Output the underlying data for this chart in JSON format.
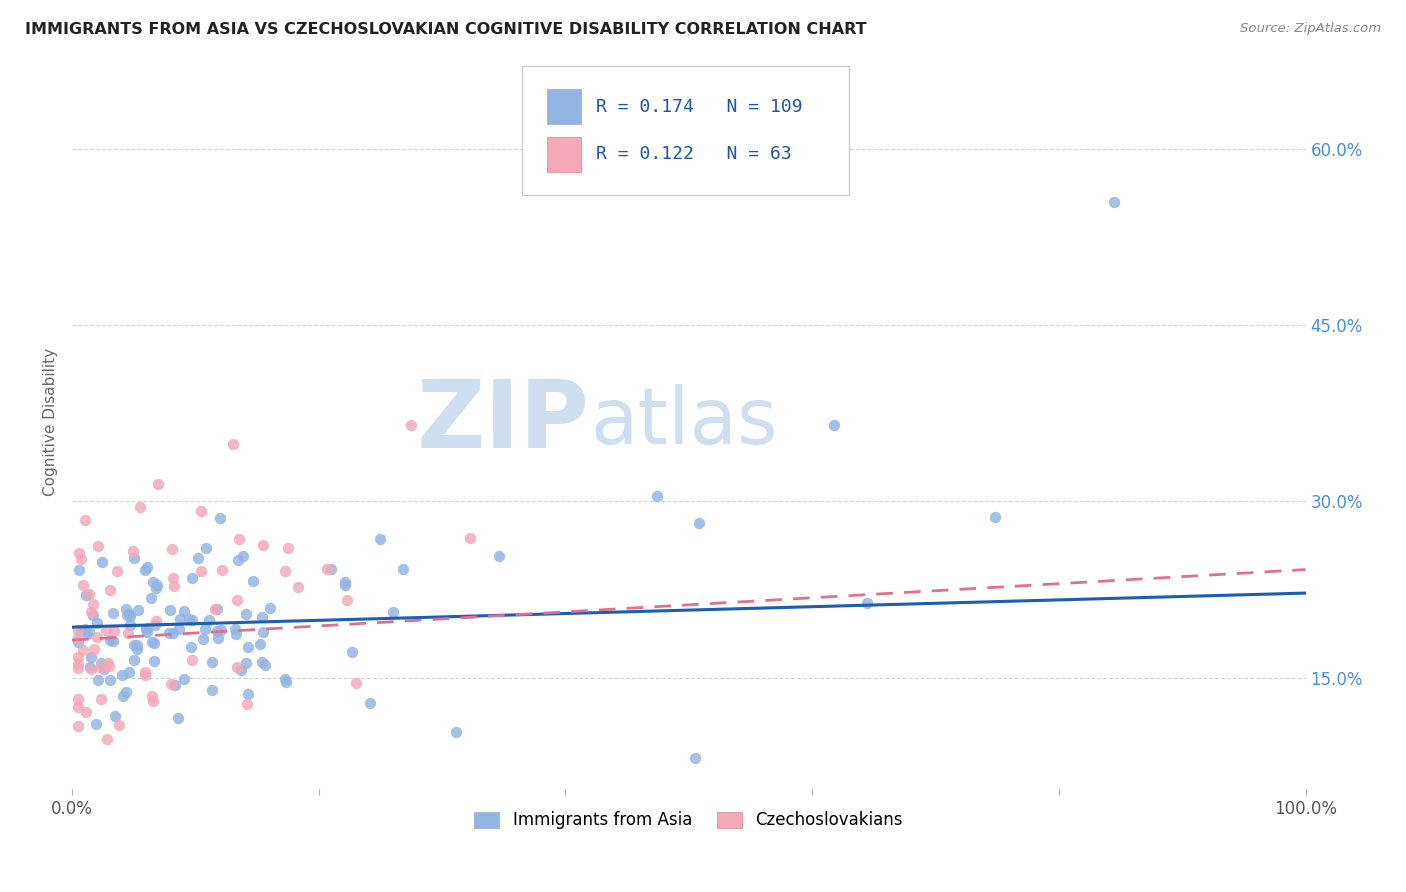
{
  "title": "IMMIGRANTS FROM ASIA VS CZECHOSLOVAKIAN COGNITIVE DISABILITY CORRELATION CHART",
  "source": "Source: ZipAtlas.com",
  "ylabel": "Cognitive Disability",
  "yticks": [
    0.15,
    0.3,
    0.45,
    0.6
  ],
  "ytick_labels": [
    "15.0%",
    "30.0%",
    "45.0%",
    "60.0%"
  ],
  "xlim": [
    0.0,
    1.0
  ],
  "ylim": [
    0.055,
    0.68
  ],
  "asia_R": 0.174,
  "asia_N": 109,
  "czech_R": 0.122,
  "czech_N": 63,
  "asia_color": "#92b4e3",
  "czech_color": "#f4a8b8",
  "asia_line_color": "#1a5fb4",
  "czech_line_color": "#e07090",
  "watermark_zip": "ZIP",
  "watermark_atlas": "atlas",
  "watermark_color": "#d0dff0",
  "asia_line_x0": 0.0,
  "asia_line_y0": 0.193,
  "asia_line_x1": 1.0,
  "asia_line_y1": 0.222,
  "czech_line_x0": 0.0,
  "czech_line_y0": 0.182,
  "czech_line_x1": 1.0,
  "czech_line_y1": 0.242,
  "grid_color": "#d0d0d0",
  "legend_box_color": "#e8e8e8"
}
